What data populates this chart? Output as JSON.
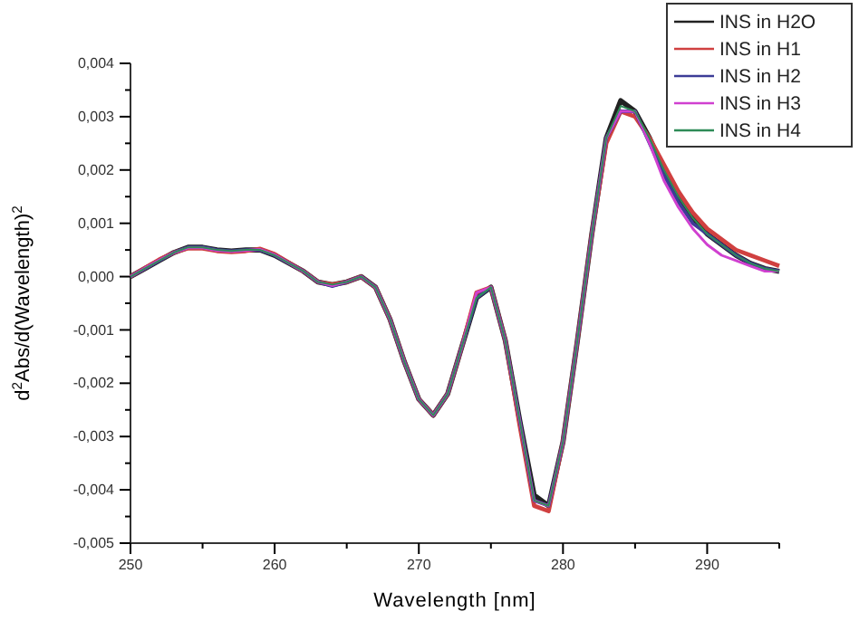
{
  "chart_data": {
    "type": "line",
    "xlabel": "Wavelength [nm]",
    "ylabel": "d$^{2}$Abs/d(Wavelength)$^{2}$",
    "x": [
      250,
      251,
      252,
      253,
      254,
      255,
      256,
      257,
      258,
      259,
      260,
      261,
      262,
      263,
      264,
      265,
      266,
      267,
      268,
      269,
      270,
      271,
      272,
      273,
      274,
      275,
      276,
      277,
      278,
      279,
      280,
      281,
      282,
      283,
      284,
      285,
      286,
      287,
      288,
      289,
      290,
      291,
      292,
      293,
      294,
      295
    ],
    "xlim": [
      250,
      295
    ],
    "xticks": [
      250,
      {
        "value": 255,
        "label": null
      },
      260,
      {
        "value": 265,
        "label": null
      },
      270,
      {
        "value": 275,
        "label": null
      },
      280,
      {
        "value": 285,
        "label": null
      },
      290,
      {
        "value": 295,
        "label": null
      }
    ],
    "ylim": [
      -0.005,
      0.004
    ],
    "yticks": [
      {
        "value": -0.005,
        "label": "-0,005"
      },
      {
        "value": -0.0045,
        "label": null
      },
      {
        "value": -0.004,
        "label": "-0,004"
      },
      {
        "value": -0.0035,
        "label": null
      },
      {
        "value": -0.003,
        "label": "-0,003"
      },
      {
        "value": -0.0025,
        "label": null
      },
      {
        "value": -0.002,
        "label": "-0,002"
      },
      {
        "value": -0.0015,
        "label": null
      },
      {
        "value": -0.001,
        "label": "-0,001"
      },
      {
        "value": -0.0005,
        "label": null
      },
      {
        "value": 0,
        "label": "0,000"
      },
      {
        "value": 0.0005,
        "label": null
      },
      {
        "value": 0.001,
        "label": "0,001"
      },
      {
        "value": 0.0015,
        "label": null
      },
      {
        "value": 0.002,
        "label": "0,002"
      },
      {
        "value": 0.0025,
        "label": null
      },
      {
        "value": 0.003,
        "label": "0,003"
      },
      {
        "value": 0.0035,
        "label": null
      },
      {
        "value": 0.004,
        "label": "0,004"
      }
    ],
    "legend": "top right",
    "grid": false,
    "marker": "none",
    "line_style": "solid",
    "series": [
      {
        "name": "INS in H2O",
        "color": "#222222",
        "values": [
          0,
          0.00015,
          0.0003,
          0.00045,
          0.00055,
          0.00055,
          0.0005,
          0.00048,
          0.0005,
          0.0005,
          0.0004,
          0.00025,
          0.0001,
          -0.0001,
          -0.00015,
          -0.0001,
          0,
          -0.0002,
          -0.0008,
          -0.0016,
          -0.0023,
          -0.0026,
          -0.0022,
          -0.0013,
          -0.0004,
          -0.0002,
          -0.0012,
          -0.0027,
          -0.0041,
          -0.0043,
          -0.0031,
          -0.0012,
          0.0008,
          0.0026,
          0.0033,
          0.0031,
          0.0026,
          0.002,
          0.0015,
          0.0011,
          0.0008,
          0.0006,
          0.0004,
          0.00025,
          0.00015,
          0.0001
        ]
      },
      {
        "name": "INS in H1",
        "color": "#d04040",
        "values": [
          0,
          0.00016,
          0.00032,
          0.00045,
          0.00053,
          0.00053,
          0.00048,
          0.00046,
          0.00048,
          0.00052,
          0.00042,
          0.00026,
          0.0001,
          -0.0001,
          -0.00015,
          -0.0001,
          0,
          -0.0002,
          -0.0008,
          -0.0016,
          -0.0023,
          -0.0026,
          -0.0022,
          -0.0013,
          -0.0003,
          -0.0002,
          -0.0012,
          -0.0028,
          -0.0043,
          -0.0044,
          -0.0031,
          -0.0012,
          0.0008,
          0.0025,
          0.0031,
          0.003,
          0.0026,
          0.0021,
          0.0016,
          0.0012,
          0.0009,
          0.0007,
          0.0005,
          0.0004,
          0.0003,
          0.0002
        ]
      },
      {
        "name": "INS in H2",
        "color": "#3c3c96",
        "values": [
          0,
          0.00015,
          0.0003,
          0.00045,
          0.00055,
          0.00055,
          0.0005,
          0.00048,
          0.0005,
          0.0005,
          0.0004,
          0.00025,
          0.0001,
          -0.0001,
          -0.00018,
          -0.0001,
          0,
          -0.0002,
          -0.0008,
          -0.0016,
          -0.0023,
          -0.0026,
          -0.0022,
          -0.0013,
          -0.0004,
          -0.0002,
          -0.0012,
          -0.0027,
          -0.0042,
          -0.0043,
          -0.0031,
          -0.0012,
          0.0008,
          0.0026,
          0.0031,
          0.0031,
          0.0025,
          0.0019,
          0.0014,
          0.001,
          0.0008,
          0.0006,
          0.0004,
          0.00025,
          0.00015,
          0.0001
        ]
      },
      {
        "name": "INS in H3",
        "color": "#d040d0",
        "values": [
          0,
          0.00016,
          0.00031,
          0.00045,
          0.00054,
          0.00054,
          0.00049,
          0.00047,
          0.00049,
          0.00051,
          0.00041,
          0.00025,
          0.0001,
          -0.0001,
          -0.00017,
          -0.0001,
          0,
          -0.0002,
          -0.0008,
          -0.0016,
          -0.0023,
          -0.0026,
          -0.0022,
          -0.0013,
          -0.0003,
          -0.0002,
          -0.0012,
          -0.0027,
          -0.0042,
          -0.0043,
          -0.0031,
          -0.0012,
          0.0008,
          0.0026,
          0.0031,
          0.0031,
          0.0025,
          0.0018,
          0.0013,
          0.0009,
          0.0006,
          0.0004,
          0.0003,
          0.0002,
          0.0001,
          0.0001
        ]
      },
      {
        "name": "INS in H4",
        "color": "#2e8b57",
        "values": [
          0,
          0.00015,
          0.0003,
          0.00045,
          0.00055,
          0.00055,
          0.0005,
          0.00048,
          0.0005,
          0.0005,
          0.0004,
          0.00025,
          0.0001,
          -0.0001,
          -0.00015,
          -0.0001,
          0,
          -0.0002,
          -0.0008,
          -0.0016,
          -0.0023,
          -0.0026,
          -0.0022,
          -0.0013,
          -0.0004,
          -0.0002,
          -0.0012,
          -0.0027,
          -0.0042,
          -0.0043,
          -0.0031,
          -0.0012,
          0.0008,
          0.0026,
          0.0032,
          0.0031,
          0.0026,
          0.002,
          0.0015,
          0.0011,
          0.0008,
          0.0006,
          0.0004,
          0.00025,
          0.00015,
          0.0001
        ]
      }
    ]
  }
}
